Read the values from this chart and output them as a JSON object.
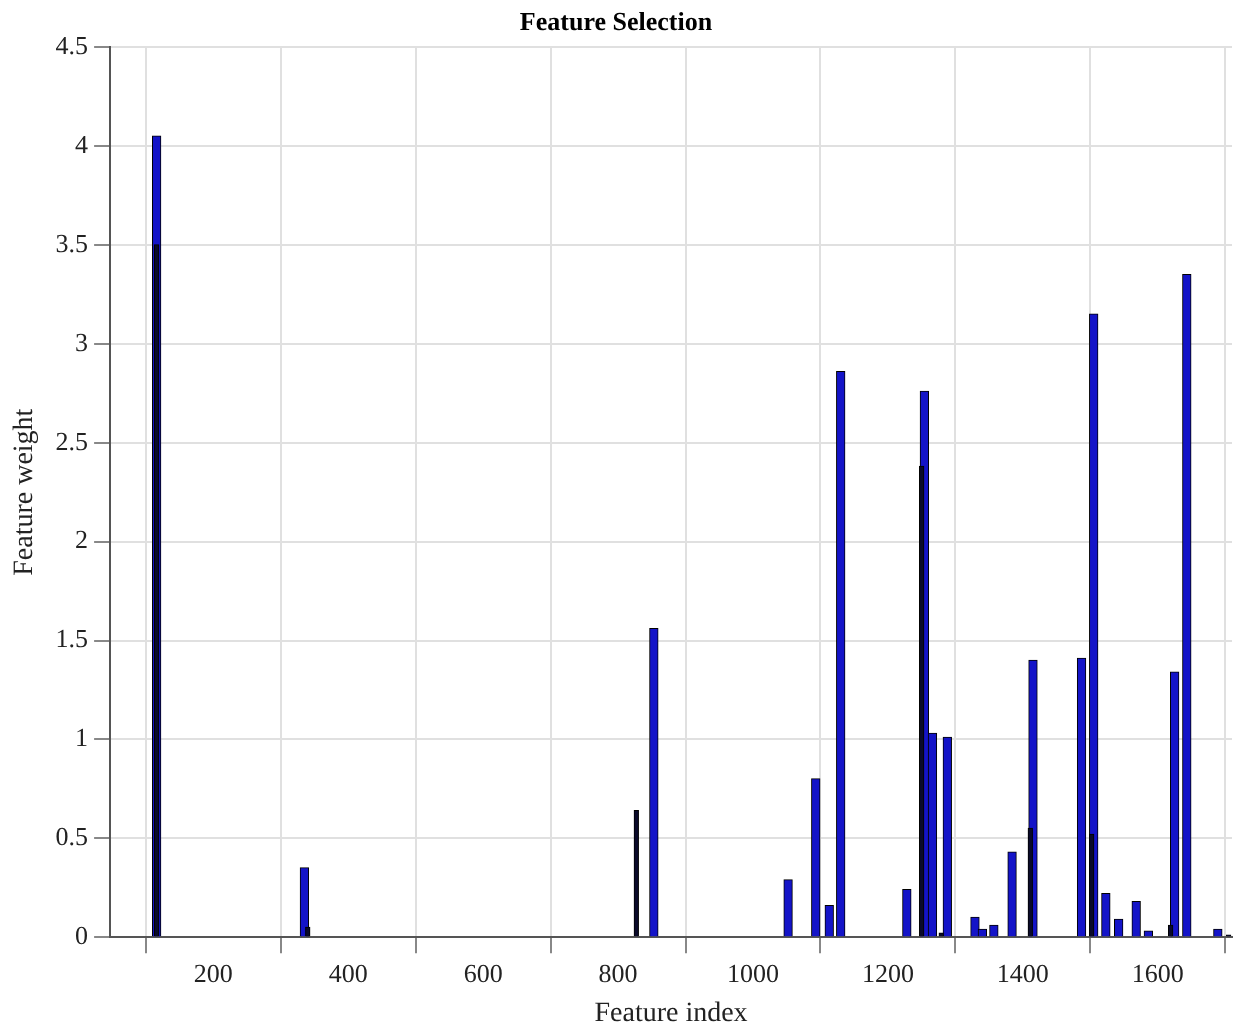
{
  "chart_data": {
    "type": "bar",
    "title": "Feature Selection",
    "xlabel": "Feature index",
    "ylabel": "Feature weight",
    "xlim": [
      47,
      1710
    ],
    "xticks": [
      200,
      400,
      600,
      800,
      1000,
      1200,
      1400,
      1600
    ],
    "ylim": [
      0,
      4.5
    ],
    "yticks": [
      0,
      0.5,
      1,
      1.5,
      2,
      2.5,
      3,
      3.5,
      4,
      4.5
    ],
    "grid": true,
    "series": [
      {
        "color": "#1414c8",
        "x": [
          116,
          335,
          853,
          1052,
          1093,
          1113,
          1130,
          1228,
          1254,
          1266,
          1288,
          1329,
          1340,
          1357,
          1384,
          1415,
          1487,
          1505,
          1523,
          1542,
          1568,
          1586,
          1625,
          1643,
          1689
        ],
        "values": [
          4.05,
          0.35,
          1.56,
          0.29,
          0.8,
          0.16,
          2.86,
          0.24,
          2.76,
          1.03,
          1.01,
          0.1,
          0.04,
          0.06,
          0.43,
          1.4,
          1.41,
          3.15,
          0.22,
          0.09,
          0.18,
          0.03,
          1.34,
          3.35,
          0.04
        ]
      },
      {
        "color": "#0a0a2a",
        "x": [
          116,
          340,
          827,
          1250,
          1279,
          1411,
          1502,
          1619,
          1705
        ],
        "values": [
          3.5,
          0.05,
          0.64,
          2.38,
          0.02,
          0.55,
          0.52,
          0.06,
          0.01
        ]
      }
    ]
  }
}
